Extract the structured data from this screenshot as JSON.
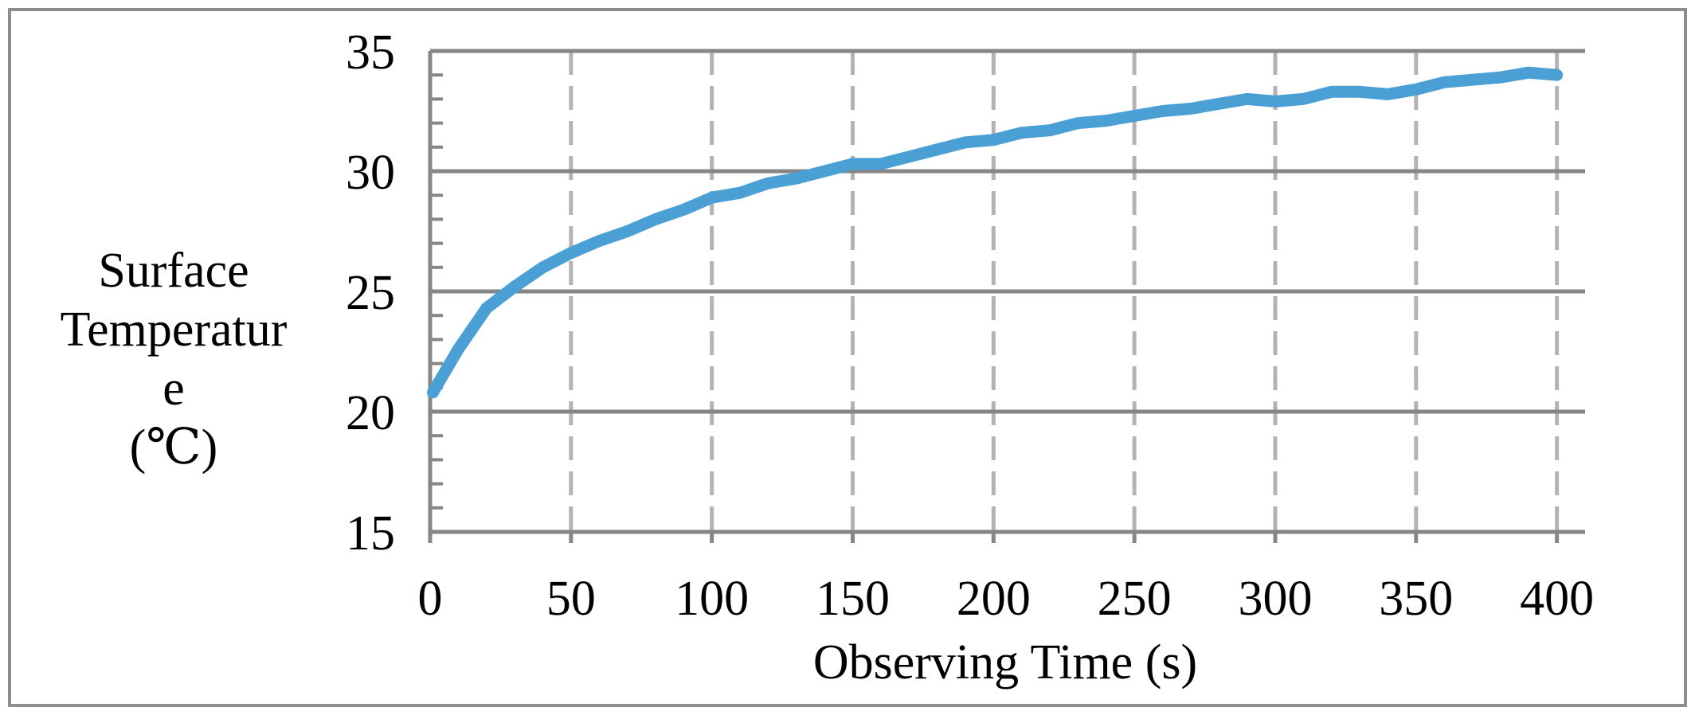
{
  "chart_data": {
    "type": "line",
    "xlabel": "Observing Time (s)",
    "ylabel_lines": [
      "Surface",
      "Temperatur",
      "e",
      "(℃)"
    ],
    "xlim": [
      0,
      410
    ],
    "ylim": [
      15,
      35
    ],
    "xticks": [
      0,
      50,
      100,
      150,
      200,
      250,
      300,
      350,
      400
    ],
    "yticks": [
      15,
      20,
      25,
      30,
      35
    ],
    "y_minor_step": 1,
    "grid": {
      "horizontal": "solid",
      "vertical": "dashed"
    },
    "series": [
      {
        "color": "#4A9FD5",
        "x": [
          1,
          10,
          20,
          30,
          40,
          50,
          60,
          70,
          80,
          90,
          100,
          110,
          120,
          130,
          140,
          150,
          160,
          170,
          180,
          190,
          200,
          210,
          220,
          230,
          240,
          250,
          260,
          270,
          280,
          290,
          300,
          310,
          320,
          330,
          340,
          350,
          360,
          370,
          380,
          390,
          400
        ],
        "y": [
          20.8,
          22.6,
          24.3,
          25.2,
          26.0,
          26.6,
          27.1,
          27.5,
          28.0,
          28.4,
          28.9,
          29.1,
          29.5,
          29.7,
          30.0,
          30.3,
          30.3,
          30.6,
          30.9,
          31.2,
          31.3,
          31.6,
          31.7,
          32.0,
          32.1,
          32.3,
          32.5,
          32.6,
          32.8,
          33.0,
          32.9,
          33.0,
          33.3,
          33.3,
          33.2,
          33.4,
          33.7,
          33.8,
          33.9,
          34.1,
          34.0
        ]
      }
    ]
  }
}
